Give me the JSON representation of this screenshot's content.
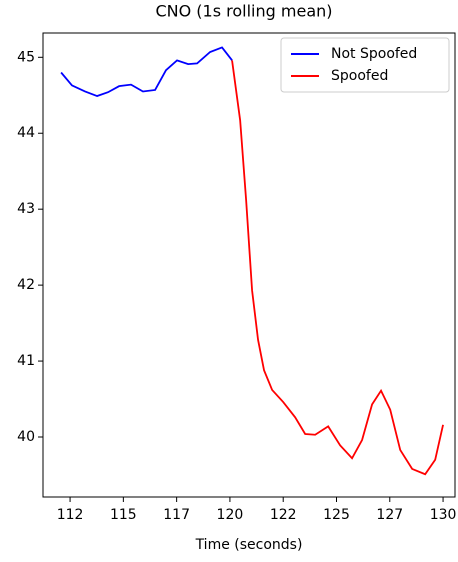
{
  "chart_data": {
    "type": "line",
    "title": "CNO (1s rolling mean)",
    "x_label": "Time (seconds)",
    "series": [
      {
        "name": "Not Spoofed",
        "color": "#0000ff",
        "x": [
          112.08,
          112.59,
          113.2,
          113.77,
          114.28,
          114.8,
          115.36,
          115.92,
          116.49,
          117.0,
          117.52,
          118.04,
          118.46,
          119.07,
          119.63,
          120.1
        ],
        "values": [
          44.8,
          44.63,
          44.55,
          44.49,
          44.54,
          44.62,
          44.64,
          44.55,
          44.57,
          44.83,
          44.96,
          44.91,
          44.92,
          45.07,
          45.13,
          44.96
        ]
      },
      {
        "name": "Spoofed",
        "color": "#ff0000",
        "x": [
          120.1,
          120.48,
          120.76,
          121.04,
          121.32,
          121.6,
          121.98,
          122.5,
          123.06,
          123.53,
          124.0,
          124.61,
          125.17,
          125.73,
          126.2,
          126.67,
          127.09,
          127.52,
          127.99,
          128.55,
          129.16,
          129.63,
          130.0
        ],
        "values": [
          44.96,
          44.17,
          43.12,
          41.93,
          41.28,
          40.88,
          40.62,
          40.46,
          40.26,
          40.04,
          40.03,
          40.14,
          39.89,
          39.72,
          39.96,
          40.43,
          40.61,
          40.36,
          39.83,
          39.58,
          39.51,
          39.7,
          40.16
        ]
      }
    ],
    "xlim": [
      111.23,
      130.56
    ],
    "ylim": [
      39.21,
      45.32
    ],
    "xticks": [
      {
        "value": 112.5,
        "label": "112"
      },
      115,
      {
        "value": 117.5,
        "label": "117"
      },
      120,
      {
        "value": 122.5,
        "label": "122"
      },
      125,
      {
        "value": 127.5,
        "label": "127"
      },
      130
    ],
    "yticks": [
      40,
      41,
      42,
      43,
      44,
      45
    ],
    "legend": "upper right"
  }
}
